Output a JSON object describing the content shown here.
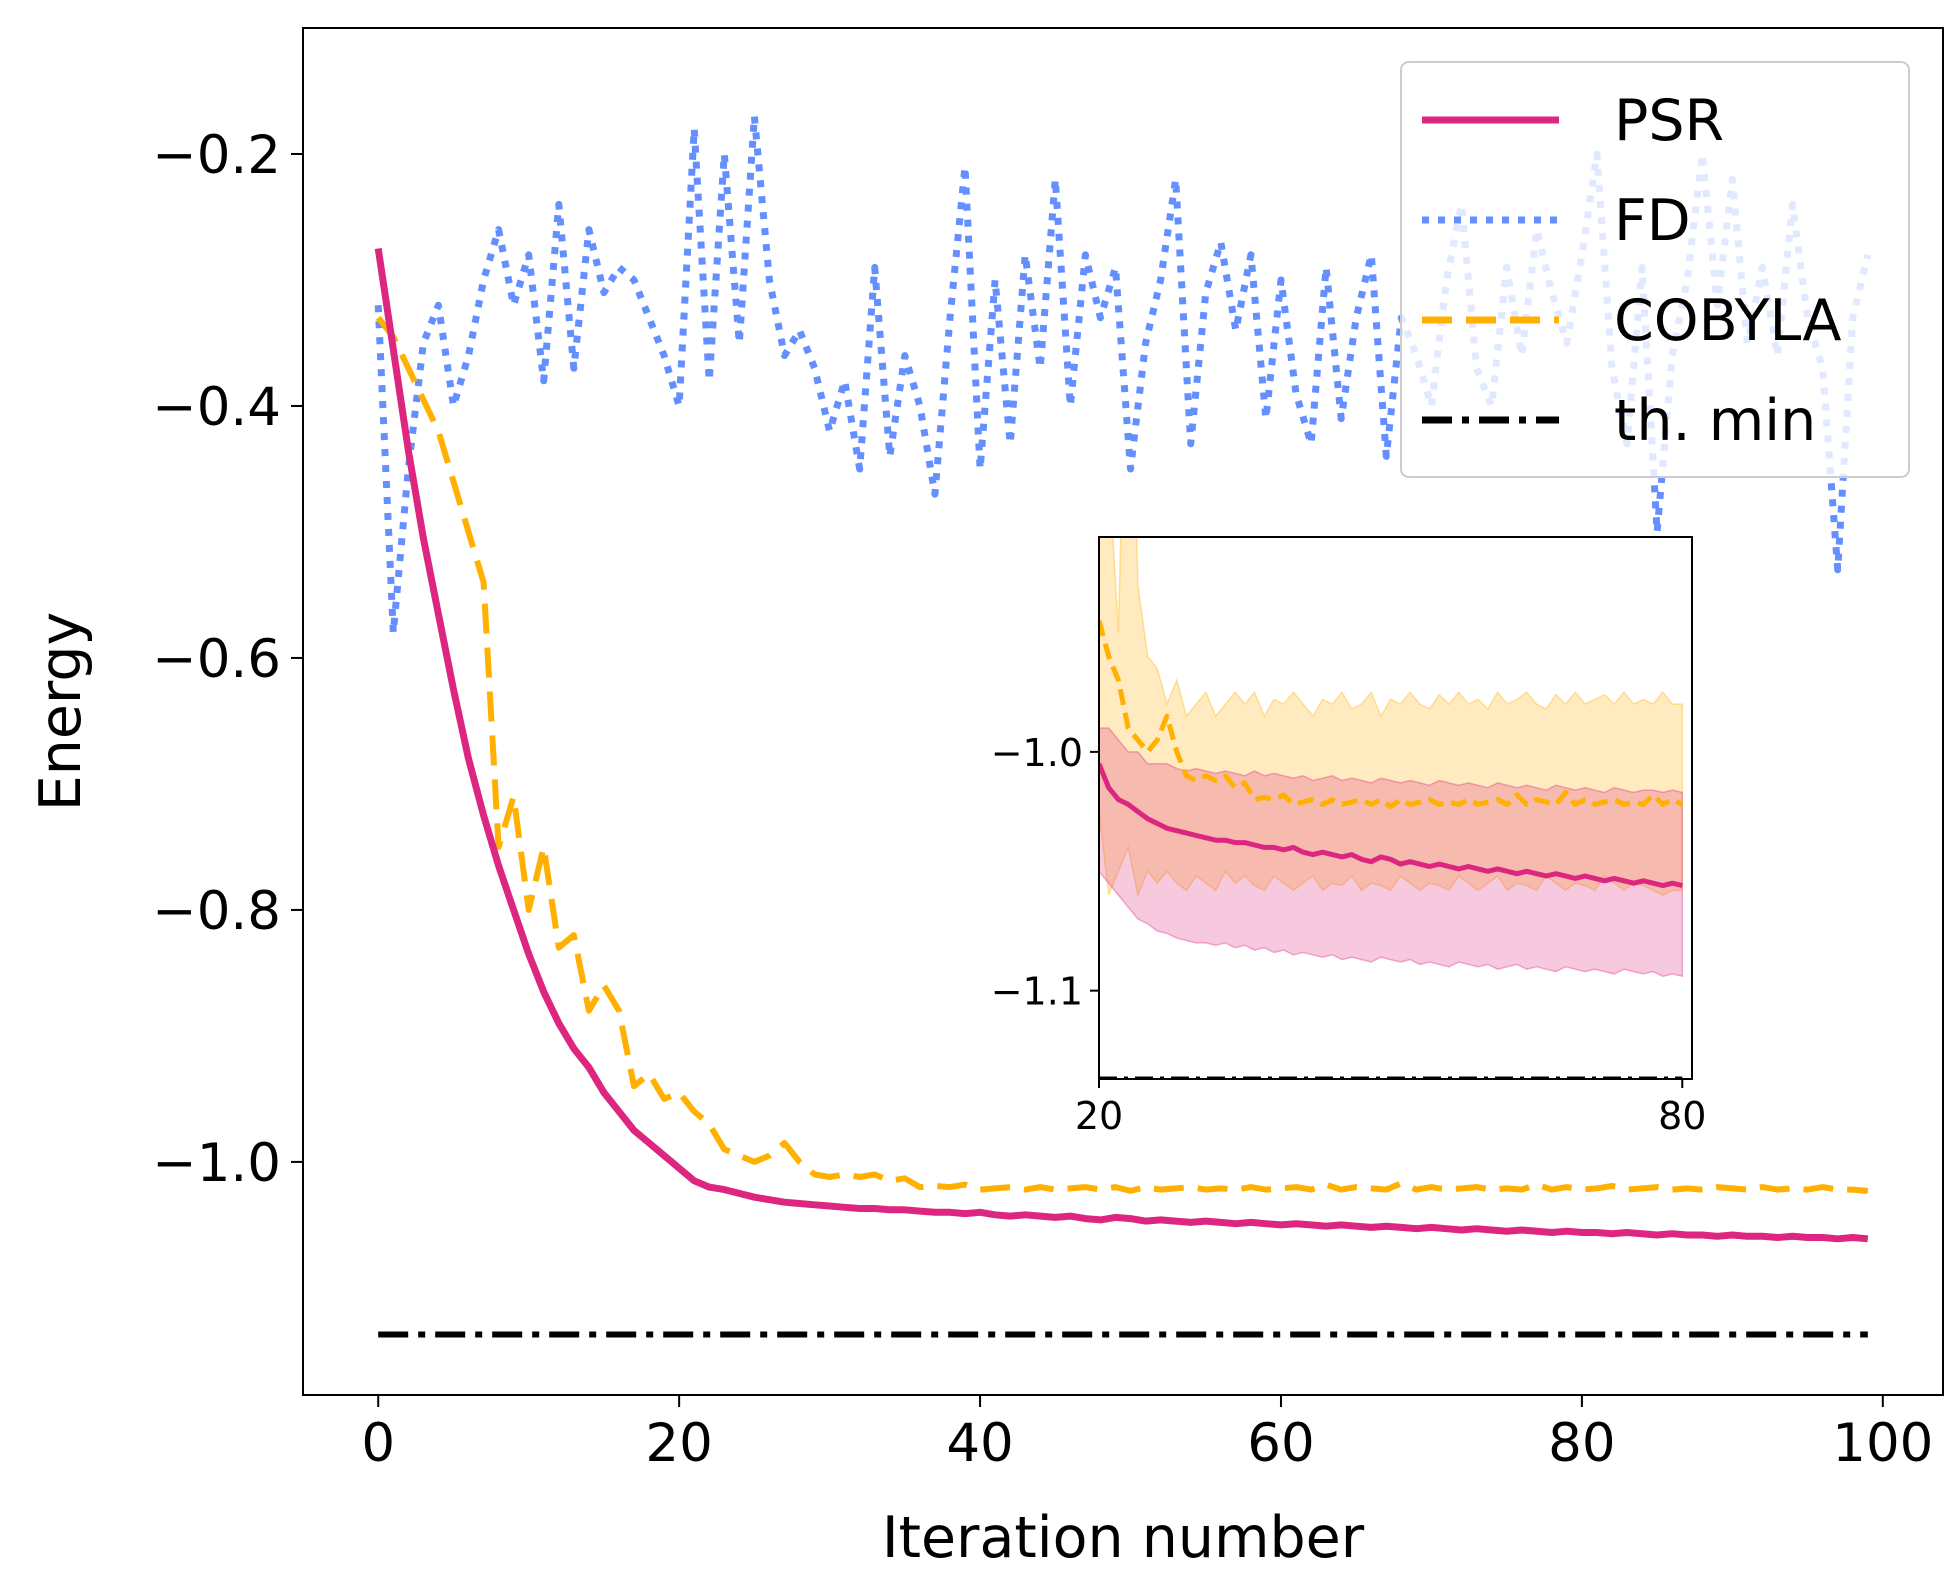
{
  "chart_data": {
    "type": "line",
    "xlabel": "Iteration number",
    "ylabel": "Energy",
    "xlim": [
      -5,
      104
    ],
    "ylim": [
      -1.185,
      -0.1
    ],
    "xticks": [
      0,
      20,
      40,
      60,
      80,
      100
    ],
    "xtick_labels": [
      "0",
      "20",
      "40",
      "60",
      "80",
      "100"
    ],
    "yticks": [
      -0.2,
      -0.4,
      -0.6,
      -0.8,
      -1.0
    ],
    "ytick_labels": [
      "−0.2",
      "−0.4",
      "−0.6",
      "−0.8",
      "−1.0"
    ],
    "legend_position": "top-right",
    "series": [
      {
        "name": "PSR",
        "color": "#dc267f",
        "style": "solid",
        "x_start": 0,
        "values": [
          -0.275,
          -0.355,
          -0.435,
          -0.505,
          -0.565,
          -0.625,
          -0.68,
          -0.725,
          -0.765,
          -0.8,
          -0.835,
          -0.865,
          -0.89,
          -0.91,
          -0.925,
          -0.945,
          -0.96,
          -0.975,
          -0.985,
          -0.995,
          -1.005,
          -1.015,
          -1.02,
          -1.022,
          -1.025,
          -1.028,
          -1.03,
          -1.032,
          -1.033,
          -1.034,
          -1.035,
          -1.036,
          -1.037,
          -1.037,
          -1.038,
          -1.038,
          -1.039,
          -1.04,
          -1.04,
          -1.041,
          -1.04,
          -1.042,
          -1.043,
          -1.042,
          -1.043,
          -1.044,
          -1.043,
          -1.045,
          -1.046,
          -1.044,
          -1.045,
          -1.047,
          -1.046,
          -1.047,
          -1.048,
          -1.047,
          -1.048,
          -1.049,
          -1.048,
          -1.049,
          -1.05,
          -1.049,
          -1.05,
          -1.051,
          -1.05,
          -1.051,
          -1.052,
          -1.051,
          -1.052,
          -1.053,
          -1.052,
          -1.053,
          -1.054,
          -1.053,
          -1.054,
          -1.055,
          -1.054,
          -1.055,
          -1.056,
          -1.055,
          -1.056,
          -1.056,
          -1.057,
          -1.056,
          -1.057,
          -1.058,
          -1.057,
          -1.058,
          -1.058,
          -1.059,
          -1.058,
          -1.059,
          -1.059,
          -1.06,
          -1.059,
          -1.06,
          -1.06,
          -1.061,
          -1.06,
          -1.061
        ]
      },
      {
        "name": "FD",
        "color": "#648fff",
        "style": "dotted",
        "x_start": 0,
        "values": [
          -0.32,
          -0.58,
          -0.45,
          -0.35,
          -0.32,
          -0.4,
          -0.36,
          -0.3,
          -0.26,
          -0.32,
          -0.28,
          -0.38,
          -0.24,
          -0.37,
          -0.26,
          -0.31,
          -0.29,
          -0.3,
          -0.33,
          -0.36,
          -0.4,
          -0.18,
          -0.38,
          -0.2,
          -0.35,
          -0.17,
          -0.3,
          -0.36,
          -0.34,
          -0.37,
          -0.42,
          -0.38,
          -0.45,
          -0.29,
          -0.44,
          -0.36,
          -0.4,
          -0.47,
          -0.33,
          -0.21,
          -0.45,
          -0.3,
          -0.43,
          -0.28,
          -0.37,
          -0.22,
          -0.4,
          -0.28,
          -0.33,
          -0.29,
          -0.45,
          -0.35,
          -0.3,
          -0.22,
          -0.43,
          -0.31,
          -0.27,
          -0.34,
          -0.28,
          -0.41,
          -0.3,
          -0.39,
          -0.43,
          -0.29,
          -0.41,
          -0.33,
          -0.28,
          -0.44,
          -0.33,
          -0.36,
          -0.4,
          -0.3,
          -0.24,
          -0.37,
          -0.4,
          -0.29,
          -0.36,
          -0.26,
          -0.31,
          -0.35,
          -0.28,
          -0.2,
          -0.37,
          -0.43,
          -0.29,
          -0.5,
          -0.36,
          -0.3,
          -0.2,
          -0.32,
          -0.22,
          -0.35,
          -0.29,
          -0.36,
          -0.24,
          -0.33,
          -0.37,
          -0.53,
          -0.33,
          -0.28
        ]
      },
      {
        "name": "COBYLA",
        "color": "#ffb000",
        "style": "dashed",
        "x_start": 0,
        "values": [
          -0.33,
          -0.345,
          -0.37,
          -0.395,
          -0.42,
          -0.46,
          -0.5,
          -0.54,
          -0.75,
          -0.71,
          -0.8,
          -0.75,
          -0.83,
          -0.82,
          -0.88,
          -0.86,
          -0.88,
          -0.94,
          -0.93,
          -0.95,
          -0.945,
          -0.96,
          -0.97,
          -0.99,
          -0.995,
          -1.0,
          -0.995,
          -0.985,
          -1.0,
          -1.01,
          -1.012,
          -1.01,
          -1.012,
          -1.01,
          -1.015,
          -1.013,
          -1.02,
          -1.019,
          -1.02,
          -1.018,
          -1.022,
          -1.021,
          -1.02,
          -1.022,
          -1.02,
          -1.022,
          -1.021,
          -1.02,
          -1.022,
          -1.02,
          -1.023,
          -1.02,
          -1.022,
          -1.021,
          -1.02,
          -1.022,
          -1.021,
          -1.022,
          -1.02,
          -1.022,
          -1.021,
          -1.02,
          -1.022,
          -1.018,
          -1.022,
          -1.02,
          -1.021,
          -1.022,
          -1.017,
          -1.022,
          -1.02,
          -1.022,
          -1.021,
          -1.02,
          -1.022,
          -1.021,
          -1.022,
          -1.018,
          -1.022,
          -1.02,
          -1.022,
          -1.021,
          -1.019,
          -1.022,
          -1.021,
          -1.02,
          -1.022,
          -1.021,
          -1.022,
          -1.02,
          -1.021,
          -1.022,
          -1.02,
          -1.022,
          -1.021,
          -1.022,
          -1.02,
          -1.022,
          -1.022,
          -1.023
        ]
      },
      {
        "name": "th. min",
        "color": "#000000",
        "style": "dashdot",
        "x": [
          0,
          99
        ],
        "values": [
          -1.137,
          -1.137
        ]
      }
    ],
    "inset": {
      "xlim": [
        20,
        81
      ],
      "ylim": [
        -1.137,
        -0.91
      ],
      "xticks": [
        20,
        80
      ],
      "xtick_labels": [
        "20",
        "80"
      ],
      "yticks": [
        -1.0,
        -1.1
      ],
      "ytick_labels": [
        "−1.0",
        "−1.1"
      ],
      "bands": [
        {
          "series": "COBYLA",
          "color": "#ffb000",
          "opacity": 0.25,
          "x_start": 20,
          "upper": [
            -0.78,
            -0.88,
            -0.95,
            -0.78,
            -0.93,
            -0.96,
            -0.965,
            -0.98,
            -0.97,
            -0.985,
            -0.98,
            -0.975,
            -0.985,
            -0.98,
            -0.975,
            -0.98,
            -0.975,
            -0.985,
            -0.978,
            -0.98,
            -0.975,
            -0.98,
            -0.985,
            -0.978,
            -0.98,
            -0.975,
            -0.982,
            -0.98,
            -0.975,
            -0.985,
            -0.978,
            -0.98,
            -0.975,
            -0.98,
            -0.982,
            -0.976,
            -0.98,
            -0.975,
            -0.98,
            -0.978,
            -0.982,
            -0.975,
            -0.98,
            -0.978,
            -0.975,
            -0.98,
            -0.982,
            -0.976,
            -0.98,
            -0.975,
            -0.98,
            -0.978,
            -0.976,
            -0.98,
            -0.975,
            -0.98,
            -0.978,
            -0.98,
            -0.975,
            -0.98,
            -0.98
          ],
          "lower": [
            -1.025,
            -1.06,
            -1.05,
            -1.04,
            -1.06,
            -1.05,
            -1.055,
            -1.05,
            -1.055,
            -1.058,
            -1.052,
            -1.055,
            -1.058,
            -1.05,
            -1.055,
            -1.052,
            -1.056,
            -1.058,
            -1.052,
            -1.055,
            -1.058,
            -1.055,
            -1.052,
            -1.058,
            -1.055,
            -1.056,
            -1.052,
            -1.058,
            -1.055,
            -1.056,
            -1.058,
            -1.052,
            -1.055,
            -1.058,
            -1.055,
            -1.056,
            -1.058,
            -1.052,
            -1.055,
            -1.058,
            -1.055,
            -1.052,
            -1.058,
            -1.055,
            -1.056,
            -1.058,
            -1.052,
            -1.055,
            -1.058,
            -1.055,
            -1.056,
            -1.058,
            -1.052,
            -1.055,
            -1.058,
            -1.055,
            -1.056,
            -1.058,
            -1.06,
            -1.058,
            -1.058
          ]
        },
        {
          "series": "PSR",
          "color": "#dc267f",
          "opacity": 0.25,
          "x_start": 20,
          "upper": [
            -0.99,
            -0.99,
            -0.995,
            -1.0,
            -1.0,
            -1.005,
            -1.005,
            -1.005,
            -1.007,
            -1.008,
            -1.007,
            -1.008,
            -1.009,
            -1.008,
            -1.009,
            -1.01,
            -1.008,
            -1.01,
            -1.009,
            -1.01,
            -1.011,
            -1.01,
            -1.012,
            -1.011,
            -1.01,
            -1.012,
            -1.011,
            -1.012,
            -1.013,
            -1.011,
            -1.012,
            -1.013,
            -1.012,
            -1.013,
            -1.014,
            -1.012,
            -1.013,
            -1.014,
            -1.013,
            -1.014,
            -1.015,
            -1.013,
            -1.014,
            -1.015,
            -1.014,
            -1.015,
            -1.016,
            -1.014,
            -1.015,
            -1.016,
            -1.015,
            -1.016,
            -1.017,
            -1.015,
            -1.016,
            -1.017,
            -1.016,
            -1.016,
            -1.017,
            -1.016,
            -1.017
          ],
          "lower": [
            -1.05,
            -1.055,
            -1.06,
            -1.065,
            -1.07,
            -1.072,
            -1.075,
            -1.076,
            -1.078,
            -1.079,
            -1.08,
            -1.08,
            -1.081,
            -1.08,
            -1.082,
            -1.081,
            -1.083,
            -1.082,
            -1.084,
            -1.083,
            -1.085,
            -1.084,
            -1.085,
            -1.086,
            -1.085,
            -1.087,
            -1.086,
            -1.087,
            -1.088,
            -1.086,
            -1.087,
            -1.088,
            -1.087,
            -1.089,
            -1.088,
            -1.089,
            -1.09,
            -1.088,
            -1.089,
            -1.09,
            -1.089,
            -1.091,
            -1.09,
            -1.089,
            -1.091,
            -1.09,
            -1.091,
            -1.092,
            -1.09,
            -1.091,
            -1.092,
            -1.091,
            -1.092,
            -1.093,
            -1.091,
            -1.092,
            -1.093,
            -1.092,
            -1.094,
            -1.093,
            -1.094
          ]
        }
      ]
    }
  }
}
